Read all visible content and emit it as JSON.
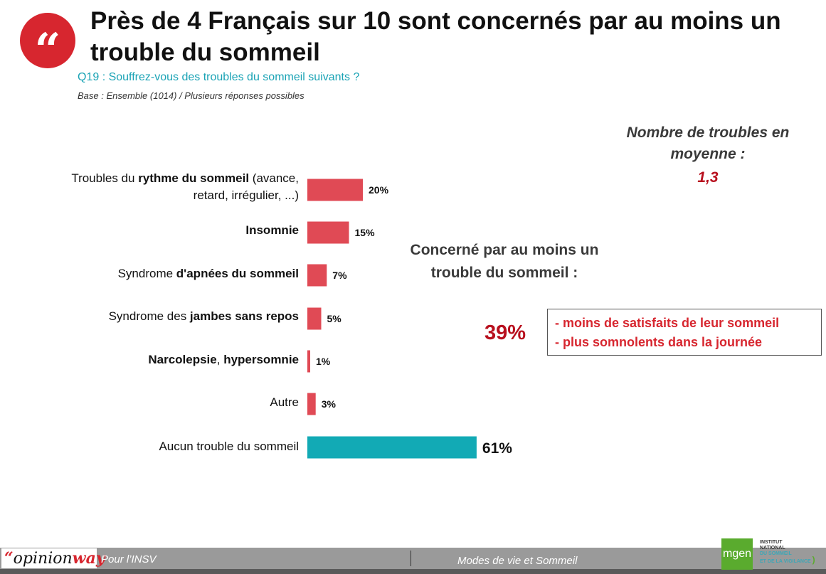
{
  "header": {
    "quote_glyph": "“",
    "title": "Près de 4 Français sur 10 sont concernés par au moins un trouble du sommeil",
    "question": "Q19 : Souffrez-vous des troubles du sommeil suivants ?",
    "base": "Base : Ensemble (1014) / Plusieurs réponses possibles"
  },
  "categories_rich": [
    {
      "pre": "Troubles du ",
      "bold": "rythme du sommeil",
      "post": " (avance,",
      "line2": "retard, irrégulier, ...)"
    },
    {
      "pre": "",
      "bold": "Insomnie",
      "post": "",
      "line2": ""
    },
    {
      "pre": "Syndrome ",
      "bold": "d'apnées du sommeil",
      "post": "",
      "line2": ""
    },
    {
      "pre": "Syndrome des ",
      "bold": "jambes sans repos",
      "post": "",
      "line2": ""
    },
    {
      "pre": "",
      "bold": "Narcolepsie",
      "post": ", ",
      "bold2": "hypersomnie",
      "line2": ""
    },
    {
      "pre": "Autre",
      "bold": "",
      "post": "",
      "line2": ""
    },
    {
      "pre": "Aucun trouble du sommeil",
      "bold": "",
      "post": "",
      "line2": ""
    }
  ],
  "chart_data": {
    "type": "bar",
    "orientation": "horizontal",
    "categories": [
      "Troubles du rythme du sommeil (avance, retard, irrégulier, ...)",
      "Insomnie",
      "Syndrome d'apnées du sommeil",
      "Syndrome des jambes sans repos",
      "Narcolepsie, hypersomnie",
      "Autre",
      "Aucun trouble du sommeil"
    ],
    "values": [
      20,
      15,
      7,
      5,
      1,
      3,
      61
    ],
    "value_labels": [
      "20%",
      "15%",
      "7%",
      "5%",
      "1%",
      "3%",
      "61%"
    ],
    "unit": "%",
    "colors": [
      "#e04a55",
      "#e04a55",
      "#e04a55",
      "#e04a55",
      "#e04a55",
      "#e04a55",
      "#12aab5"
    ],
    "title": "",
    "xlabel": "",
    "ylabel": "",
    "grid": false
  },
  "side": {
    "avg_label": "Nombre de troubles en moyenne :",
    "avg_value": "1,3",
    "concern_label": "Concerné par au moins un trouble du sommeil :",
    "concern_value": "39%",
    "concern_points": [
      "- moins de satisfaits de leur sommeil",
      "- plus somnolents dans la journée"
    ]
  },
  "footer": {
    "logo_quote": "“",
    "logo_text": "opinion",
    "logo_text_accent": "way",
    "left": "Pour l’INSV",
    "center": "Modes de vie et Sommeil",
    "mgen": "mgen",
    "insv_lines": [
      "INSTITUT",
      "NATIONAL"
    ],
    "insv_sub_lines": [
      "DU SOMMEIL",
      "ET DE LA VIGILANCE"
    ],
    "insv_paren": ")"
  }
}
